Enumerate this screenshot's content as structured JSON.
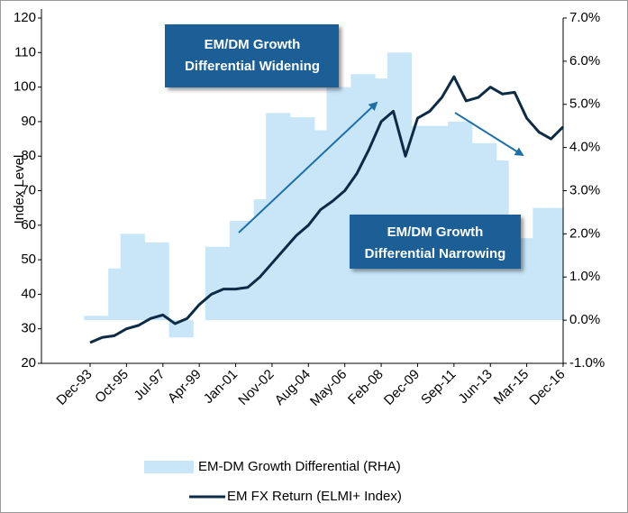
{
  "chart_data": {
    "type": "bar_line",
    "ylabel": "Index Level",
    "categories": [
      "Dec-93",
      null,
      null,
      "Oct-95",
      null,
      null,
      "Jul-97",
      null,
      null,
      "Apr-99",
      null,
      null,
      "Jan-01",
      null,
      null,
      "Nov-02",
      null,
      null,
      "Aug-04",
      null,
      null,
      "May-06",
      null,
      null,
      "Feb-08",
      null,
      null,
      "Dec-09",
      null,
      null,
      "Sep-11",
      null,
      null,
      "Jun-13",
      null,
      null,
      "Mar-15",
      null,
      null,
      "Dec-16"
    ],
    "series": [
      {
        "name": "EM-DM Growth Differential (RHA)",
        "type": "bar",
        "axis": "y2",
        "color": "#c8e6f8",
        "values": [
          0.1,
          0.1,
          1.2,
          2.0,
          2.0,
          1.8,
          1.8,
          -0.4,
          -0.4,
          0.0,
          1.7,
          1.7,
          2.3,
          2.3,
          2.8,
          4.8,
          4.8,
          4.7,
          4.7,
          4.4,
          5.4,
          5.4,
          5.7,
          5.7,
          5.6,
          6.2,
          6.2,
          4.5,
          4.5,
          4.5,
          4.6,
          4.6,
          4.1,
          4.1,
          3.7,
          1.9,
          1.9,
          2.6,
          2.6,
          2.6
        ]
      },
      {
        "name": "EM FX Return (ELMI+ Index)",
        "type": "line",
        "color": "#0d2b45",
        "values": [
          26,
          27.5,
          28,
          30,
          31,
          33,
          34,
          31.5,
          33,
          37,
          40,
          41.5,
          41.5,
          42,
          45,
          49,
          53,
          57,
          60,
          64.5,
          67,
          70,
          75,
          82,
          90,
          93,
          80,
          91,
          93,
          97,
          103,
          96,
          97,
          100,
          98,
          98.5,
          91,
          87,
          85,
          88.5
        ]
      }
    ],
    "ylim": [
      20,
      120
    ],
    "yticks": [
      20,
      30,
      40,
      50,
      60,
      70,
      80,
      90,
      100,
      110,
      120
    ],
    "y2lim": [
      -1,
      7
    ],
    "y2ticks": [
      {
        "value": -1,
        "label": "-1.0%"
      },
      {
        "value": 0,
        "label": "0.0%"
      },
      {
        "value": 1,
        "label": "1.0%"
      },
      {
        "value": 2,
        "label": "2.0%"
      },
      {
        "value": 3,
        "label": "3.0%"
      },
      {
        "value": 4,
        "label": "4.0%"
      },
      {
        "value": 5,
        "label": "5.0%"
      },
      {
        "value": 6,
        "label": "6.0%"
      },
      {
        "value": 7,
        "label": "7.0%"
      }
    ],
    "annotations": [
      {
        "lines": [
          "EM/DM Growth",
          "Differential Widening"
        ]
      },
      {
        "lines": [
          "EM/DM Growth",
          "Differential Narrowing"
        ]
      }
    ],
    "legend": "bottom"
  }
}
